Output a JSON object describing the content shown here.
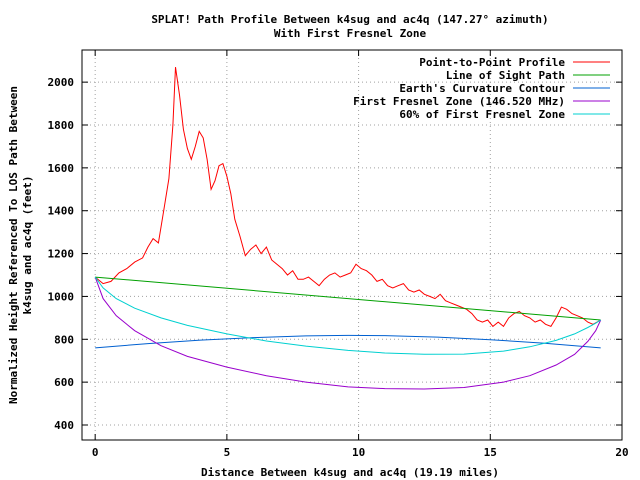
{
  "chart_data": {
    "type": "line",
    "title": "SPLAT! Path Profile Between k4sug and ac4q (147.27° azimuth)",
    "subtitle": "With First Fresnel Zone",
    "xlabel": "Distance Between k4sug and ac4q (19.19 miles)",
    "ylabel_line1": "Normalized Height Referenced To LOS Path Between",
    "ylabel_line2": "k4sug and ac4q (feet)",
    "xlim": [
      -0.5,
      20
    ],
    "ylim": [
      330,
      2150
    ],
    "x_ticks": [
      0,
      5,
      10,
      15,
      20
    ],
    "y_ticks": [
      400,
      600,
      800,
      1000,
      1200,
      1400,
      1600,
      1800,
      2000
    ],
    "grid": true,
    "legend_position": "top-right",
    "series": [
      {
        "name": "Point-to-Point Profile",
        "color": "#ff0000",
        "x": [
          0,
          0.3,
          0.6,
          0.9,
          1.2,
          1.5,
          1.8,
          2.0,
          2.2,
          2.4,
          2.6,
          2.8,
          2.95,
          3.05,
          3.2,
          3.35,
          3.5,
          3.65,
          3.8,
          3.95,
          4.1,
          4.25,
          4.4,
          4.55,
          4.7,
          4.85,
          5.0,
          5.15,
          5.3,
          5.5,
          5.7,
          5.9,
          6.1,
          6.3,
          6.5,
          6.7,
          6.9,
          7.1,
          7.3,
          7.5,
          7.7,
          7.9,
          8.1,
          8.3,
          8.5,
          8.7,
          8.9,
          9.1,
          9.3,
          9.5,
          9.7,
          9.9,
          10.1,
          10.3,
          10.5,
          10.7,
          10.9,
          11.1,
          11.3,
          11.5,
          11.7,
          11.9,
          12.1,
          12.3,
          12.5,
          12.7,
          12.9,
          13.1,
          13.3,
          13.5,
          13.7,
          13.9,
          14.1,
          14.3,
          14.5,
          14.7,
          14.9,
          15.1,
          15.3,
          15.5,
          15.7,
          15.9,
          16.1,
          16.3,
          16.5,
          16.7,
          16.9,
          17.1,
          17.3,
          17.5,
          17.7,
          17.9,
          18.1,
          18.3,
          18.5,
          18.7,
          18.9,
          19.19
        ],
        "values": [
          1090,
          1060,
          1070,
          1110,
          1130,
          1160,
          1180,
          1230,
          1270,
          1250,
          1400,
          1550,
          1800,
          2070,
          1940,
          1780,
          1690,
          1640,
          1700,
          1770,
          1740,
          1640,
          1500,
          1540,
          1610,
          1620,
          1560,
          1480,
          1360,
          1280,
          1190,
          1220,
          1240,
          1200,
          1230,
          1170,
          1150,
          1130,
          1100,
          1120,
          1080,
          1080,
          1090,
          1070,
          1050,
          1080,
          1100,
          1110,
          1090,
          1100,
          1110,
          1150,
          1130,
          1120,
          1100,
          1070,
          1080,
          1050,
          1040,
          1050,
          1060,
          1030,
          1020,
          1030,
          1010,
          1000,
          990,
          1010,
          980,
          970,
          960,
          950,
          940,
          920,
          890,
          880,
          890,
          860,
          880,
          860,
          900,
          920,
          930,
          910,
          900,
          880,
          890,
          870,
          860,
          900,
          950,
          940,
          920,
          910,
          900,
          880,
          870,
          890
        ]
      },
      {
        "name": "Line of Sight Path",
        "color": "#00a000",
        "x": [
          0,
          19.19
        ],
        "values": [
          1090,
          890
        ]
      },
      {
        "name": "Earth's Curvature Contour",
        "color": "#0060d0",
        "x": [
          0,
          2,
          4,
          6,
          8,
          9.6,
          11,
          13,
          15,
          17,
          19.19
        ],
        "values": [
          760,
          780,
          796,
          808,
          816,
          818,
          817,
          810,
          798,
          782,
          760
        ]
      },
      {
        "name": "First Fresnel Zone (146.520 MHz)",
        "color": "#9900cc",
        "x": [
          0,
          0.3,
          0.8,
          1.5,
          2.5,
          3.5,
          5,
          6.5,
          8,
          9.6,
          11,
          12.5,
          14,
          15.5,
          16.5,
          17.5,
          18.2,
          18.7,
          19.0,
          19.19
        ],
        "values": [
          1090,
          990,
          910,
          840,
          770,
          720,
          670,
          630,
          600,
          578,
          570,
          568,
          575,
          600,
          630,
          680,
          730,
          790,
          840,
          890
        ]
      },
      {
        "name": "60% of First Fresnel Zone",
        "color": "#00d0d0",
        "x": [
          0,
          0.3,
          0.8,
          1.5,
          2.5,
          3.5,
          5,
          6.5,
          8,
          9.6,
          11,
          12.5,
          14,
          15.5,
          16.5,
          17.5,
          18.2,
          18.7,
          19.0,
          19.19
        ],
        "values": [
          1090,
          1040,
          990,
          945,
          900,
          865,
          825,
          792,
          768,
          748,
          736,
          730,
          731,
          745,
          765,
          795,
          825,
          855,
          875,
          890
        ]
      }
    ]
  }
}
